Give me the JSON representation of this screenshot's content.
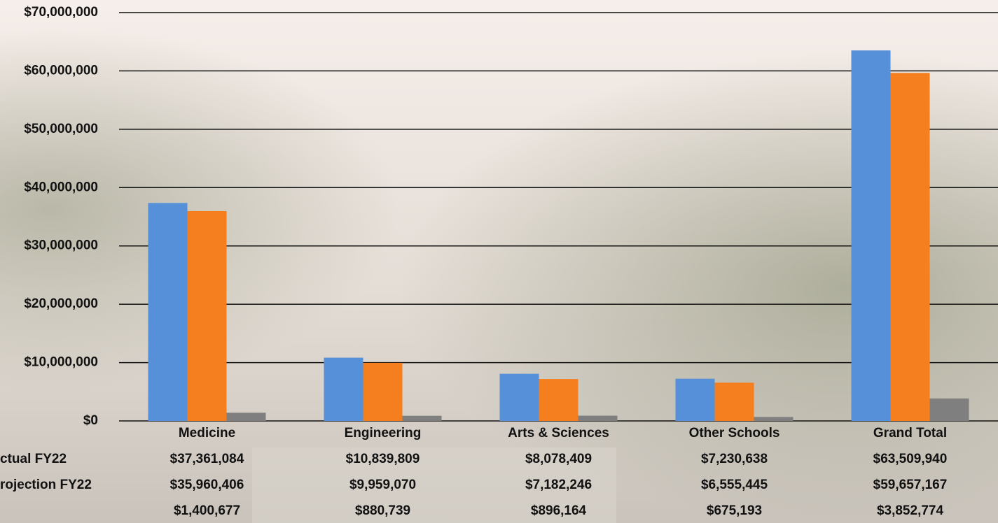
{
  "chart_data": {
    "type": "bar",
    "categories": [
      "Medicine",
      "Engineering",
      "Arts & Sciences",
      "Other Schools",
      "Grand Total"
    ],
    "series": [
      {
        "name": "ctual FY22",
        "color": "#5590d9",
        "values": [
          37361084,
          10839809,
          8078409,
          7230638,
          63509940
        ],
        "value_labels": [
          "$37,361,084",
          "$10,839,809",
          "$8,078,409",
          "$7,230,638",
          "$63,509,940"
        ]
      },
      {
        "name": "rojection FY22",
        "color": "#f57f1e",
        "values": [
          35960406,
          9959070,
          7182246,
          6555445,
          59657167
        ],
        "value_labels": [
          "$35,960,406",
          "$9,959,070",
          "$7,182,246",
          "$6,555,445",
          "$59,657,167"
        ]
      },
      {
        "color": "#7f7f7f",
        "values": [
          1400677,
          880739,
          896164,
          675193,
          3852774
        ],
        "value_labels": [
          "$1,400,677",
          "$880,739",
          "$896,164",
          "$675,193",
          "$3,852,774"
        ]
      }
    ],
    "ylim": [
      0,
      70000000
    ],
    "yticks": [
      {
        "value": 0,
        "label": "$0"
      },
      {
        "value": 10000000,
        "label": "$10,000,000"
      },
      {
        "value": 20000000,
        "label": "$20,000,000"
      },
      {
        "value": 30000000,
        "label": "$30,000,000"
      },
      {
        "value": 40000000,
        "label": "$40,000,000"
      },
      {
        "value": 50000000,
        "label": "$50,000,000"
      },
      {
        "value": 60000000,
        "label": "$60,000,000"
      },
      {
        "value": 70000000,
        "label": "$70,000,000"
      }
    ],
    "grid": true
  }
}
